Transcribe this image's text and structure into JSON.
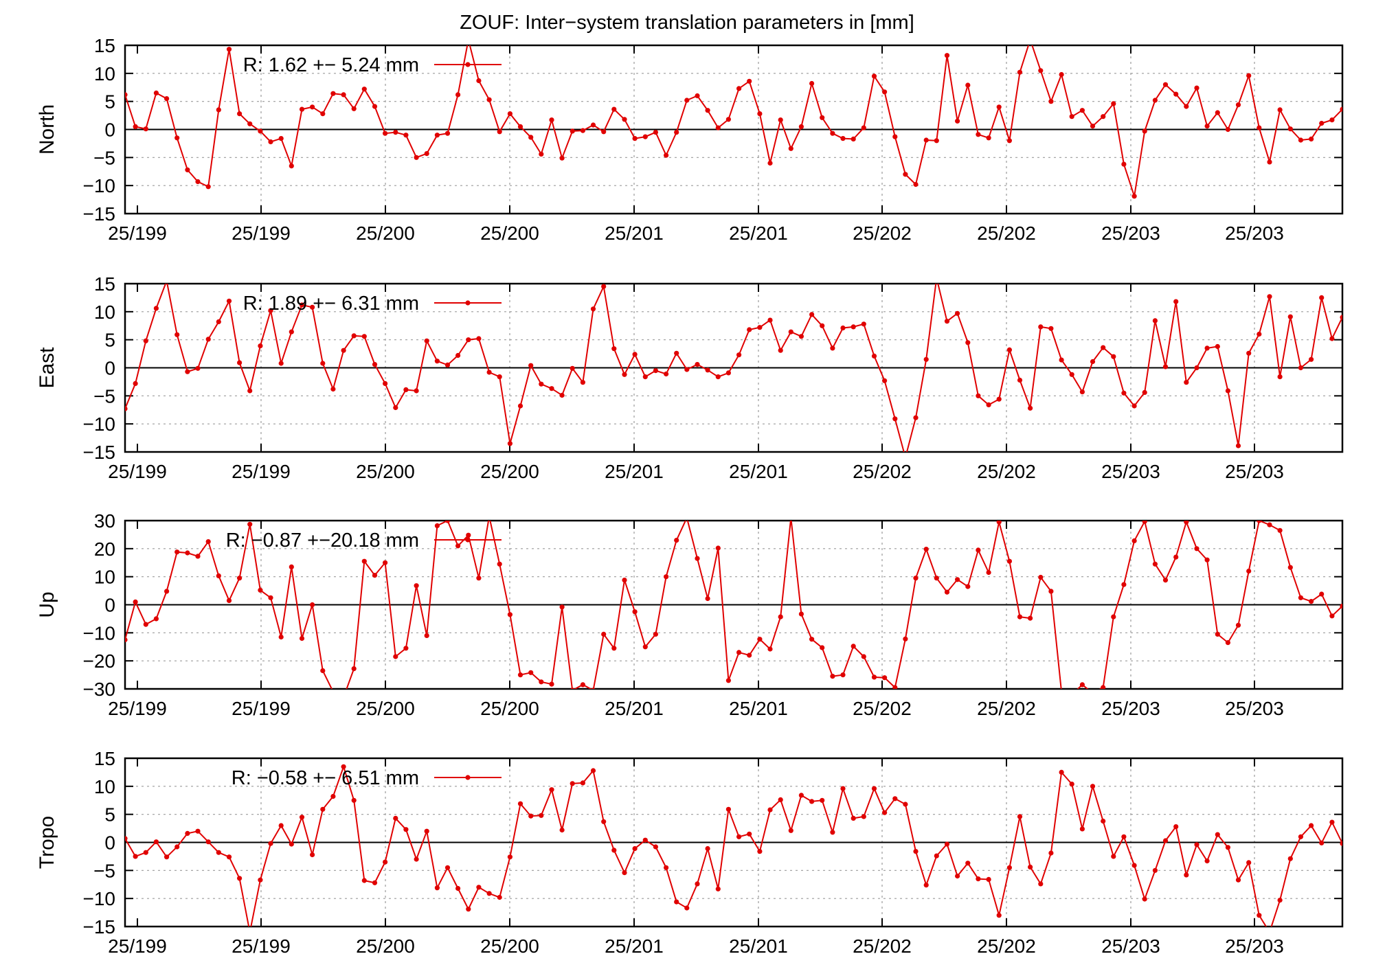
{
  "title": "ZOUF: Inter−system translation parameters in [mm]",
  "colors": {
    "series": "#e00000",
    "grid": "#9a9a9a",
    "axis": "#000000"
  },
  "x_tick_labels": [
    "25/199",
    "25/199",
    "25/200",
    "25/200",
    "25/201",
    "25/201",
    "25/202",
    "25/202",
    "25/203",
    "25/203"
  ],
  "chart_data": [
    {
      "type": "line",
      "ylabel": "North",
      "ylim": [
        -15,
        15
      ],
      "yticks": [
        -15,
        -10,
        -5,
        0,
        5,
        10,
        15
      ],
      "grid": true,
      "legend_position": "top-left",
      "series": [
        {
          "name": "R:  1.62 +− 5.24 mm",
          "values": [
            6.2,
            0.5,
            0.1,
            6.5,
            5.5,
            -1.5,
            -7.2,
            -9.3,
            -10.2,
            3.5,
            14.3,
            2.8,
            1,
            -0.3,
            -2.2,
            -1.6,
            -6.5,
            3.6,
            4,
            2.8,
            6.4,
            6.2,
            3.7,
            7.2,
            4.1,
            -0.7,
            -0.5,
            -1,
            -5,
            -4.3,
            -1,
            -0.7,
            6.2,
            16,
            8.7,
            5.3,
            -0.4,
            2.8,
            0.5,
            -1.4,
            -4.4,
            1.7,
            -5.1,
            -0.3,
            -0.2,
            0.8,
            -0.4,
            3.6,
            1.8,
            -1.6,
            -1.3,
            -0.5,
            -4.6,
            -0.5,
            5.2,
            6,
            3.4,
            0.3,
            1.8,
            7.3,
            8.6,
            2.8,
            -6,
            1.7,
            -3.4,
            0.5,
            8.2,
            2.1,
            -0.7,
            -1.6,
            -1.7,
            0.3,
            9.5,
            6.7,
            -1.3,
            -8,
            -9.8,
            -1.9,
            -2,
            13.2,
            1.5,
            7.9,
            -0.9,
            -1.5,
            4,
            -2,
            10.2,
            16,
            10.5,
            5,
            9.8,
            2.3,
            3.4,
            0.6,
            2.3,
            4.6,
            -6.2,
            -11.9,
            -0.3,
            5.2,
            8,
            6.3,
            4.1,
            7.4,
            0.6,
            3,
            0,
            4.4,
            9.6,
            0.3,
            -5.8,
            3.5,
            0.1,
            -1.9,
            -1.7,
            1.1,
            1.7,
            3.6
          ]
        }
      ]
    },
    {
      "type": "line",
      "ylabel": "East",
      "ylim": [
        -15,
        15
      ],
      "yticks": [
        -15,
        -10,
        -5,
        0,
        5,
        10,
        15
      ],
      "grid": true,
      "legend_position": "top-left",
      "series": [
        {
          "name": "R:  1.89 +− 6.31 mm",
          "values": [
            -7.3,
            -2.8,
            4.8,
            10.6,
            15.5,
            5.9,
            -0.7,
            -0.1,
            5.1,
            8.2,
            11.9,
            0.9,
            -4.1,
            3.9,
            10.2,
            0.8,
            6.4,
            11.2,
            10.8,
            0.8,
            -3.8,
            3.1,
            5.7,
            5.6,
            0.6,
            -2.8,
            -7.1,
            -3.9,
            -4.1,
            4.8,
            1.2,
            0.5,
            2.2,
            5,
            5.2,
            -0.8,
            -1.6,
            -13.5,
            -6.8,
            0.4,
            -2.9,
            -3.7,
            -4.9,
            -0.1,
            -2.6,
            10.5,
            14.5,
            3.4,
            -1.2,
            2.4,
            -1.6,
            -0.5,
            -1.1,
            2.6,
            -0.3,
            0.6,
            -0.4,
            -1.6,
            -0.9,
            2.3,
            6.8,
            7.2,
            8.5,
            3.1,
            6.4,
            5.6,
            9.5,
            7.5,
            3.5,
            7.1,
            7.3,
            7.8,
            2.1,
            -2.3,
            -9.1,
            -16,
            -8.9,
            1.5,
            16,
            8.3,
            9.7,
            4.5,
            -5,
            -6.6,
            -5.6,
            3.2,
            -2.2,
            -7.2,
            7.3,
            7,
            1.4,
            -1.2,
            -4.3,
            1.1,
            3.6,
            2,
            -4.5,
            -6.8,
            -4.4,
            8.4,
            0.2,
            11.8,
            -2.6,
            0,
            3.5,
            3.8,
            -4.1,
            -13.9,
            2.6,
            6,
            12.7,
            -1.6,
            9.1,
            0,
            1.5,
            12.5,
            5.2,
            9
          ]
        }
      ]
    },
    {
      "type": "line",
      "ylabel": "Up",
      "ylim": [
        -30,
        30
      ],
      "yticks": [
        -30,
        -20,
        -10,
        0,
        10,
        20,
        30
      ],
      "grid": true,
      "legend_position": "top-left",
      "series": [
        {
          "name": "R:  −0.87 +−20.18 mm",
          "values": [
            -12.5,
            1,
            -7,
            -5,
            4.8,
            18.8,
            18.5,
            17.3,
            22.5,
            10.3,
            1.5,
            9.5,
            28.7,
            5.2,
            2.5,
            -11.5,
            13.5,
            -12,
            0,
            -23.5,
            -31,
            -33,
            -22.8,
            15.5,
            10.5,
            15,
            -18.5,
            -15.5,
            6.8,
            -11,
            28.2,
            30,
            21,
            24.8,
            9.5,
            31.5,
            14.5,
            -3.5,
            -25,
            -24.2,
            -27.5,
            -28.3,
            -0.8,
            -30.5,
            -28.5,
            -30.5,
            -10.5,
            -15.5,
            8.8,
            -2.5,
            -15,
            -10.5,
            10,
            23,
            31,
            16.5,
            2.2,
            20.2,
            -27,
            -17,
            -18,
            -12.3,
            -15.8,
            -4.3,
            31,
            -3.3,
            -12.3,
            -15.3,
            -25.5,
            -25,
            -14.8,
            -18.5,
            -25.8,
            -26,
            -29.5,
            -12.2,
            9.5,
            19.8,
            9.5,
            4.5,
            9,
            6.5,
            19.5,
            11.5,
            29.5,
            15.5,
            -4.3,
            -4.8,
            9.8,
            4.8,
            -31,
            -32,
            -28.5,
            -31.5,
            -29.5,
            -4.3,
            7.2,
            22.8,
            29.7,
            14.5,
            8.8,
            17,
            29.5,
            20,
            16,
            -10.5,
            -13.5,
            -7.3,
            12,
            30,
            28.5,
            26.5,
            13.3,
            2.5,
            1.2,
            3.8,
            -4,
            -0.5
          ]
        }
      ]
    },
    {
      "type": "line",
      "ylabel": "Tropo",
      "ylim": [
        -15,
        15
      ],
      "yticks": [
        -15,
        -10,
        -5,
        0,
        5,
        10,
        15
      ],
      "grid": true,
      "legend_position": "top-left",
      "series": [
        {
          "name": "R:  −0.58 +− 6.51 mm",
          "values": [
            0.7,
            -2.5,
            -1.8,
            0.1,
            -2.6,
            -0.8,
            1.6,
            2,
            0.1,
            -1.8,
            -2.6,
            -6.4,
            -16,
            -6.7,
            -0.2,
            3,
            -0.3,
            4.5,
            -2.2,
            5.9,
            8.2,
            13.5,
            7.5,
            -6.8,
            -7.2,
            -3.5,
            4.3,
            2.3,
            -3,
            2,
            -8.1,
            -4.5,
            -8.2,
            -11.9,
            -8,
            -9.1,
            -9.8,
            -2.6,
            6.9,
            4.7,
            4.8,
            9.4,
            2.2,
            10.5,
            10.6,
            12.8,
            3.7,
            -1.4,
            -5.4,
            -1.1,
            0.4,
            -0.8,
            -4.5,
            -10.6,
            -11.7,
            -7.4,
            -1.1,
            -8.3,
            5.9,
            1,
            1.5,
            -1.6,
            5.8,
            7.6,
            2.1,
            8.4,
            7.3,
            7.5,
            1.8,
            9.6,
            4.3,
            4.6,
            9.6,
            5.3,
            7.8,
            6.8,
            -1.6,
            -7.6,
            -2.4,
            -0.3,
            -6,
            -3.7,
            -6.5,
            -6.6,
            -13,
            -4.5,
            4.6,
            -4.4,
            -7.4,
            -1.9,
            12.5,
            10.4,
            2.4,
            10,
            3.8,
            -2.5,
            1,
            -4.1,
            -10.1,
            -5,
            0.3,
            2.8,
            -5.8,
            -0.4,
            -3.3,
            1.4,
            -0.9,
            -6.7,
            -3.6,
            -13,
            -16,
            -10.3,
            -2.9,
            1,
            3,
            -0.1,
            3.6,
            -0.2
          ]
        }
      ]
    }
  ]
}
